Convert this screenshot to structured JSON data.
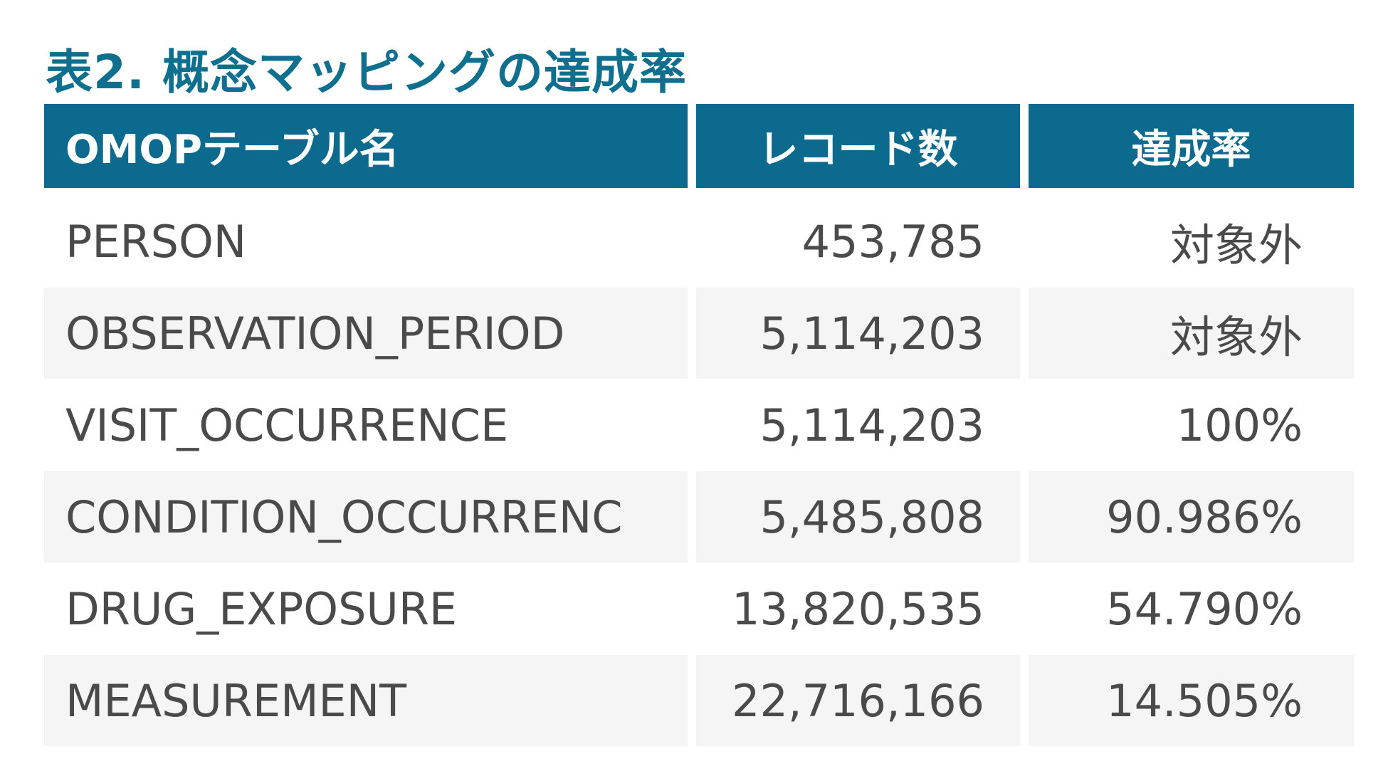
{
  "title": "表2. 概念マッピングの達成率",
  "table": {
    "headers": [
      "OMOPテーブル名",
      "レコード数",
      "達成率"
    ],
    "rows": [
      {
        "table_name": "PERSON",
        "record_count": "453,785",
        "rate": "対象外"
      },
      {
        "table_name": "OBSERVATION_PERIOD",
        "record_count": "5,114,203",
        "rate": "対象外"
      },
      {
        "table_name": "VISIT_OCCURRENCE",
        "record_count": "5,114,203",
        "rate": "100%"
      },
      {
        "table_name": "CONDITION_OCCURRENC",
        "record_count": "5,485,808",
        "rate": "90.986%"
      },
      {
        "table_name": "DRUG_EXPOSURE",
        "record_count": "13,820,535",
        "rate": "54.790%"
      },
      {
        "table_name": "MEASUREMENT",
        "record_count": "22,716,166",
        "rate": "14.505%"
      }
    ]
  },
  "colors": {
    "title": "#0f6f8e",
    "header_bg": "#0b6a8d",
    "header_text": "#ffffff",
    "body_text": "#4a4a4a",
    "shaded_row": "#f5f5f5"
  }
}
